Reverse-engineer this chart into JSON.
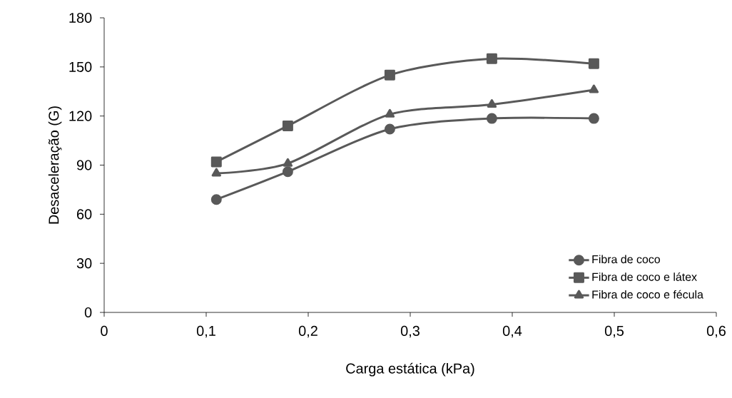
{
  "chart_data": {
    "type": "line",
    "xlabel": "Carga estática (kPa)",
    "ylabel": "Desaceleração (G)",
    "x": [
      0.11,
      0.18,
      0.28,
      0.38,
      0.48
    ],
    "series": [
      {
        "name": "Fibra de coco",
        "color": "#595959",
        "marker": "circle",
        "values": [
          69,
          86,
          112,
          118.5,
          118.5
        ]
      },
      {
        "name": "Fibra de coco e látex",
        "color": "#595959",
        "marker": "square",
        "values": [
          92,
          114,
          145,
          155,
          152
        ]
      },
      {
        "name": "Fibra de coco e fécula",
        "color": "#595959",
        "marker": "triangle",
        "values": [
          85,
          91,
          121,
          127,
          136
        ]
      }
    ],
    "xlim": [
      0,
      0.6
    ],
    "ylim": [
      0,
      180
    ],
    "xticks": [
      {
        "value": 0,
        "label": "0"
      },
      {
        "value": 0.1,
        "label": "0,1"
      },
      {
        "value": 0.2,
        "label": "0,2"
      },
      {
        "value": 0.3,
        "label": "0,3"
      },
      {
        "value": 0.4,
        "label": "0,4"
      },
      {
        "value": 0.5,
        "label": "0,5"
      },
      {
        "value": 0.6,
        "label": "0,6"
      }
    ],
    "yticks": [
      0,
      30,
      60,
      90,
      120,
      150,
      180
    ],
    "grid": false,
    "legend": "bottom right",
    "line_style": "solid"
  }
}
